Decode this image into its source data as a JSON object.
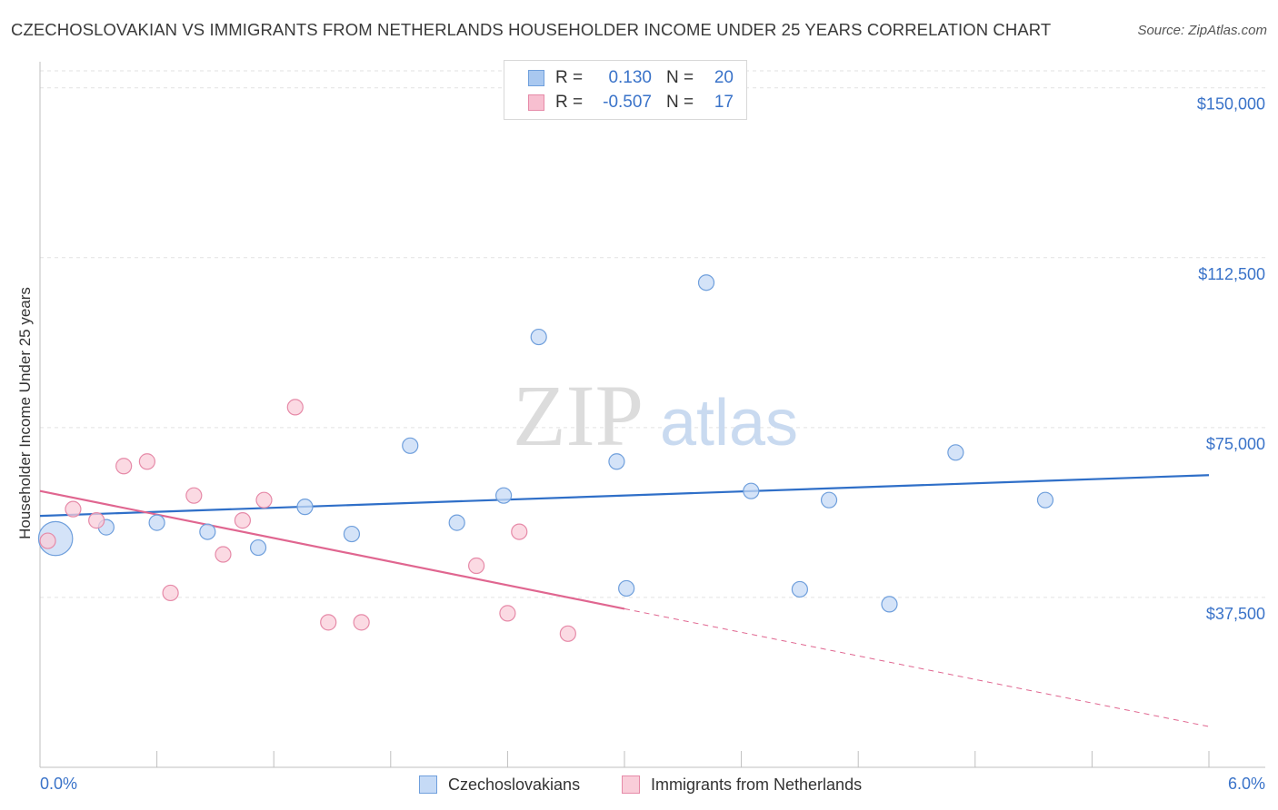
{
  "title": "CZECHOSLOVAKIAN VS IMMIGRANTS FROM NETHERLANDS HOUSEHOLDER INCOME UNDER 25 YEARS CORRELATION CHART",
  "source": "Source: ZipAtlas.com",
  "watermark": {
    "zip": "ZIP",
    "atlas": "atlas"
  },
  "stats": [
    {
      "r_label": "R =",
      "r_value": "0.130",
      "n_label": "N =",
      "n_value": "20",
      "color": "#a9c8f0",
      "border": "#6f9fdc"
    },
    {
      "r_label": "R =",
      "r_value": "-0.507",
      "n_label": "N =",
      "n_value": "17",
      "color": "#f7bfd0",
      "border": "#e68aa8"
    }
  ],
  "legend": [
    {
      "label": "Czechoslovakians",
      "color": "#c5daf6",
      "border": "#6f9fdc"
    },
    {
      "label": "Immigrants from Netherlands",
      "color": "#f9cdd9",
      "border": "#e68aa8"
    }
  ],
  "chart_data": {
    "type": "scatter",
    "title": "CZECHOSLOVAKIAN VS IMMIGRANTS FROM NETHERLANDS HOUSEHOLDER INCOME UNDER 25 YEARS CORRELATION CHART",
    "xlabel": "",
    "ylabel": "Householder Income Under 25 years",
    "xlim": [
      0,
      6
    ],
    "ylim": [
      0,
      153750
    ],
    "x_tick_labels": [
      "0.0%",
      "6.0%"
    ],
    "y_ticks": [
      37500,
      75000,
      112500,
      150000
    ],
    "y_tick_labels": [
      "$37,500",
      "$75,000",
      "$112,500",
      "$150,000"
    ],
    "grid": true,
    "series": [
      {
        "name": "Czechoslovakians",
        "color": "#6f9fdc",
        "fill": "#c5daf6",
        "x": [
          0.08,
          0.34,
          0.6,
          0.86,
          1.12,
          1.36,
          1.6,
          1.9,
          2.14,
          2.38,
          2.56,
          2.96,
          3.01,
          3.42,
          3.65,
          3.9,
          4.05,
          4.36,
          4.7,
          5.16
        ],
        "y": [
          50500,
          53000,
          54000,
          52000,
          48500,
          57500,
          51500,
          71000,
          54000,
          60000,
          95000,
          67500,
          39500,
          107000,
          61000,
          39300,
          59000,
          36000,
          69500,
          59000
        ],
        "sizes": [
          3,
          1,
          1,
          1,
          1,
          1,
          1,
          1,
          1,
          1,
          1,
          1,
          1,
          1,
          1,
          1,
          1,
          1,
          1,
          1
        ],
        "trend": {
          "x": [
            0,
            6
          ],
          "y": [
            55500,
            64500
          ]
        }
      },
      {
        "name": "Immigrants from Netherlands",
        "color": "#e68aa8",
        "fill": "#f9cdd9",
        "x": [
          0.04,
          0.17,
          0.29,
          0.43,
          0.55,
          0.67,
          0.79,
          0.94,
          1.04,
          1.15,
          1.31,
          1.48,
          1.65,
          2.24,
          2.4,
          2.46,
          2.71
        ],
        "y": [
          50000,
          57000,
          54500,
          66500,
          67500,
          38500,
          60000,
          47000,
          54500,
          59000,
          79500,
          32000,
          32000,
          44500,
          34000,
          52000,
          29500
        ],
        "sizes": [
          1,
          1,
          1,
          1,
          1,
          1,
          1,
          1,
          1,
          1,
          1,
          1,
          1,
          1,
          1,
          1,
          1
        ],
        "trend": {
          "x": [
            0,
            3
          ],
          "y": [
            61000,
            35000
          ],
          "dashed_to": {
            "x": 6,
            "y": 9000
          }
        }
      }
    ]
  }
}
